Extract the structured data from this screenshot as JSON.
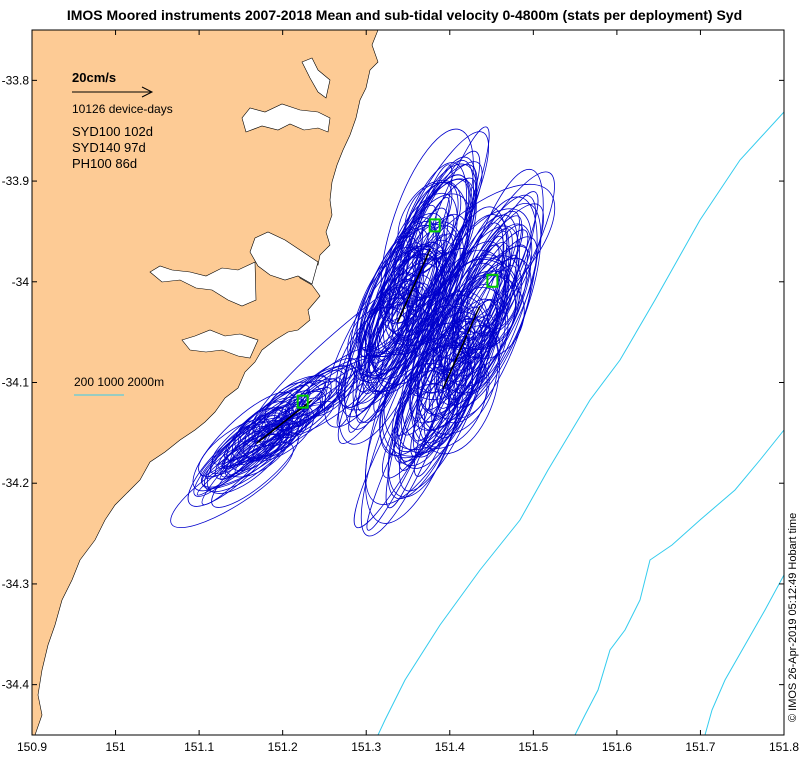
{
  "title": "IMOS Moored instruments 2007-2018 Mean and sub-tidal velocity 0-4800m (stats per deployment) Syd",
  "legend": {
    "scale_label": "20cm/s",
    "device_days": "10126 device-days",
    "stations": [
      "SYD100 102d",
      "SYD140 97d",
      "PH100 86d"
    ],
    "isobath_label": "200 1000 2000m"
  },
  "credit": "© IMOS 26-Apr-2019 05:12:49 Hobart time",
  "colors": {
    "land": "#FDCB95",
    "ellipse": "#0000CC",
    "isobath": "#33CCEE",
    "mooring": "#00CC00",
    "mean": "#000000"
  },
  "chart_data": {
    "type": "scatter",
    "xlim": [
      150.9,
      151.8
    ],
    "ylim": [
      -34.45,
      -33.75
    ],
    "xticks": [
      "150.9",
      "151",
      "151.1",
      "151.2",
      "151.3",
      "151.4",
      "151.5",
      "151.6",
      "151.7",
      "151.8"
    ],
    "yticks": [
      "-33.8",
      "-33.9",
      "-34",
      "-34.1",
      "-34.2",
      "-34.3",
      "-34.4"
    ],
    "moorings": [
      {
        "lon": 151.224,
        "lat": -34.119
      },
      {
        "lon": 151.382,
        "lat": -33.944
      },
      {
        "lon": 151.451,
        "lat": -33.999
      }
    ]
  }
}
